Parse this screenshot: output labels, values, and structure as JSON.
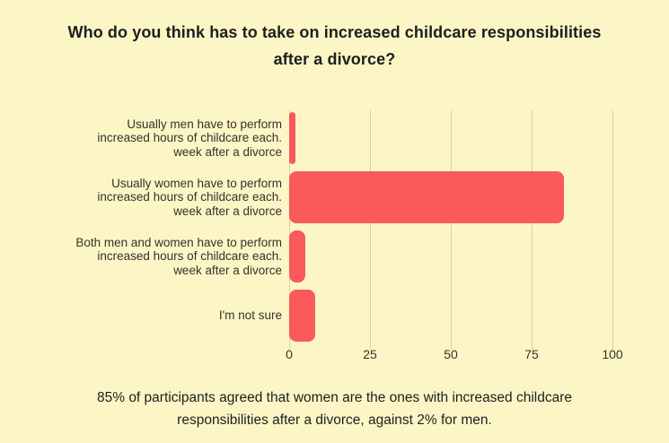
{
  "page": {
    "background_color": "#FCF6C6"
  },
  "title": {
    "text": "Who do you think has to take on increased childcare responsibilities\nafter a divorce?"
  },
  "caption": {
    "text": "85% of participants agreed that women are the ones with increased childcare\nresponsibilities after a divorce, against 2% for men."
  },
  "chart_data": {
    "type": "bar",
    "orientation": "horizontal",
    "title": "Who do you think has to take on increased childcare responsibilities after a divorce?",
    "categories": [
      "Usually men have to perform\nincreased hours of childcare each.\nweek after a divorce",
      "Usually women have to perform\nincreased hours of childcare each.\nweek after a divorce",
      "Both men and women have to perform\nincreased hours of childcare each.\nweek after a divorce",
      "I'm not sure"
    ],
    "values": [
      2,
      85,
      5,
      8
    ],
    "xlabel": "",
    "ylabel": "",
    "xlim": [
      0,
      100
    ],
    "xticks": [
      0,
      25,
      50,
      75,
      100
    ],
    "grid": true,
    "legend": false,
    "bar_color": "#FA5A5A",
    "gridline_color": "#D4CFAC",
    "label_color": "#33332B",
    "annotation": "85% of participants agreed that women are the ones with increased childcare responsibilities after a divorce, against 2% for men."
  }
}
